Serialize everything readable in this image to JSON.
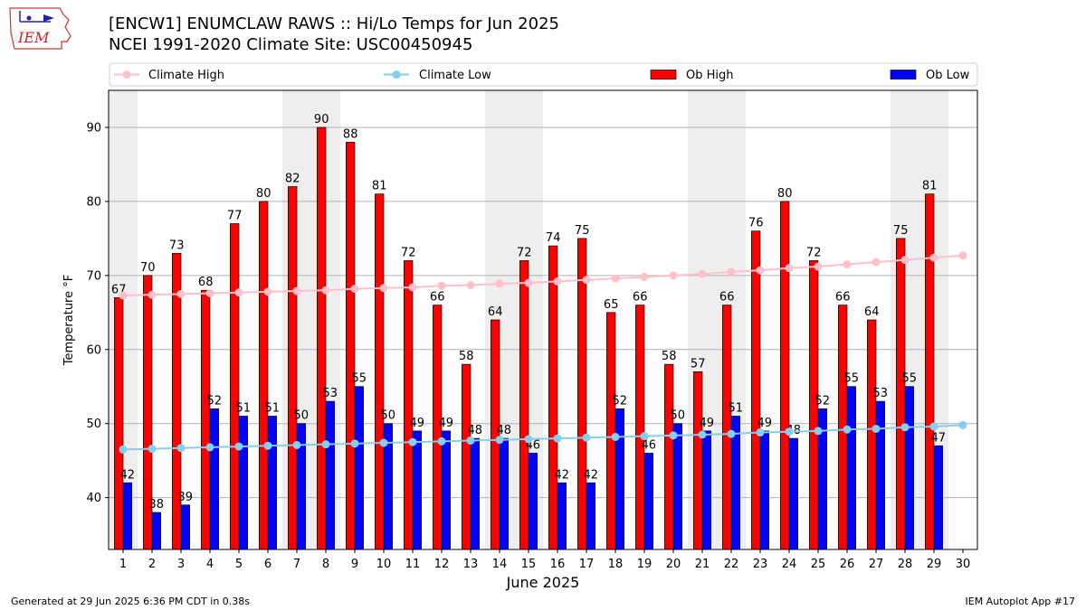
{
  "header": {
    "title_line1": "[ENCW1] ENUMCLAW RAWS :: Hi/Lo Temps for Jun 2025",
    "title_line2": "NCEI 1991-2020 Climate Site: USC00450945",
    "logo_text": "IEM"
  },
  "footer": {
    "generated": "Generated at 29 Jun 2025 6:36 PM CDT in 0.38s",
    "app": "IEM Autoplot App #17"
  },
  "colors": {
    "ob_high": "#ff0000",
    "ob_low": "#0000ff",
    "climate_high": "#ffc0cb",
    "climate_low": "#87ceeb",
    "weekend_shade": "#eeeeee",
    "grid": "#b0b0b0"
  },
  "chart_data": {
    "type": "bar",
    "xlabel": "June 2025",
    "ylabel": "Temperature °F",
    "ylim": [
      33,
      95
    ],
    "yticks": [
      40,
      50,
      60,
      70,
      80,
      90
    ],
    "grid": "horizontal",
    "legend_placement": "top",
    "legend": [
      "Climate High",
      "Climate Low",
      "Ob High",
      "Ob Low"
    ],
    "days": [
      1,
      2,
      3,
      4,
      5,
      6,
      7,
      8,
      9,
      10,
      11,
      12,
      13,
      14,
      15,
      16,
      17,
      18,
      19,
      20,
      21,
      22,
      23,
      24,
      25,
      26,
      27,
      28,
      29,
      30
    ],
    "shaded_day_ranges": [
      [
        1,
        1
      ],
      [
        7,
        8
      ],
      [
        14,
        15
      ],
      [
        21,
        22
      ],
      [
        28,
        29
      ]
    ],
    "series": [
      {
        "name": "Ob High",
        "kind": "bar",
        "values": [
          67,
          70,
          73,
          68,
          77,
          80,
          82,
          90,
          88,
          81,
          72,
          66,
          58,
          64,
          72,
          74,
          75,
          65,
          66,
          58,
          57,
          66,
          76,
          80,
          72,
          66,
          64,
          75,
          81
        ]
      },
      {
        "name": "Ob Low",
        "kind": "bar",
        "values": [
          42,
          38,
          39,
          52,
          51,
          51,
          50,
          53,
          55,
          50,
          49,
          49,
          48,
          48,
          46,
          42,
          42,
          52,
          46,
          50,
          49,
          51,
          49,
          48,
          52,
          55,
          53,
          55,
          47
        ]
      },
      {
        "name": "Climate High",
        "kind": "line",
        "values": [
          67.3,
          67.4,
          67.5,
          67.6,
          67.7,
          67.8,
          67.9,
          68.0,
          68.2,
          68.3,
          68.4,
          68.6,
          68.7,
          68.9,
          69.0,
          69.2,
          69.4,
          69.6,
          69.8,
          70.0,
          70.2,
          70.5,
          70.7,
          71.0,
          71.2,
          71.5,
          71.8,
          72.1,
          72.4,
          72.7
        ]
      },
      {
        "name": "Climate Low",
        "kind": "line",
        "values": [
          46.5,
          46.6,
          46.7,
          46.8,
          46.9,
          47.0,
          47.1,
          47.2,
          47.3,
          47.4,
          47.5,
          47.6,
          47.7,
          47.8,
          47.9,
          48.0,
          48.1,
          48.2,
          48.3,
          48.4,
          48.5,
          48.6,
          48.8,
          48.9,
          49.0,
          49.2,
          49.3,
          49.5,
          49.6,
          49.8
        ]
      }
    ]
  }
}
